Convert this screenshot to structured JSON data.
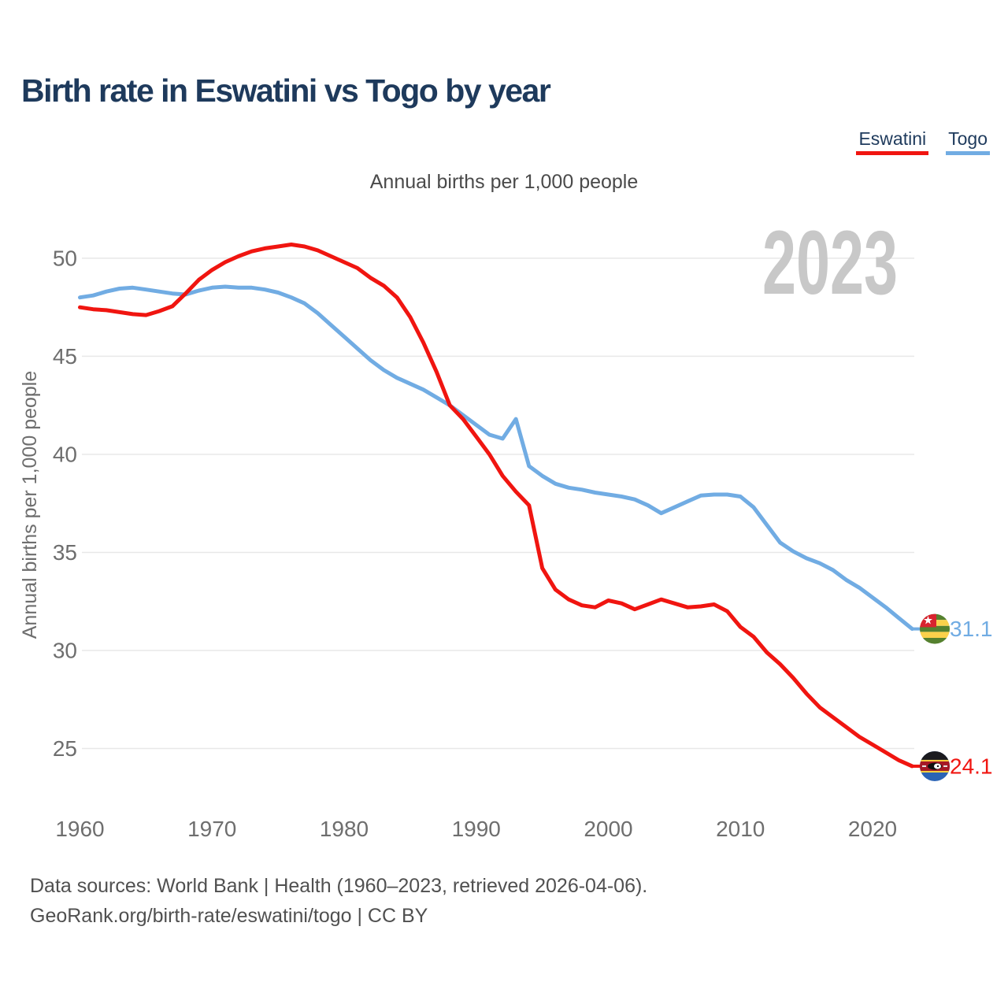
{
  "header": {
    "title": "Birth rate in Eswatini vs Togo by year"
  },
  "subtitle": "Annual births per 1,000 people",
  "y_axis_title": "Annual births per 1,000 people",
  "watermark": "2023",
  "legend": {
    "items": [
      {
        "label": "Eswatini",
        "color": "#f01510"
      },
      {
        "label": "Togo",
        "color": "#71ace3"
      }
    ]
  },
  "end_labels": [
    {
      "series": "Togo",
      "value": "31.1",
      "flag": "togo-flag"
    },
    {
      "series": "Eswatini",
      "value": "24.1",
      "flag": "eswatini-flag"
    }
  ],
  "footer": {
    "line1": "Data sources: World Bank | Health (1960–2023, retrieved 2026-04-06).",
    "line2": "GeoRank.org/birth-rate/eswatini/togo | CC BY"
  },
  "colors": {
    "eswatini": "#f01510",
    "togo": "#71ace3",
    "title_navy": "#1e3a5c",
    "tick_gray": "#6e6e6e",
    "gridline": "#e8e8e8",
    "watermark_gray": "#c8c8c8"
  },
  "chart_data": {
    "type": "line",
    "title": "Birth rate in Eswatini vs Togo by year",
    "ylabel": "Annual births per 1,000 people",
    "xlim": [
      1960,
      2023
    ],
    "ylim": [
      23.5,
      51.5
    ],
    "x_ticks": [
      1960,
      1970,
      1980,
      1990,
      2000,
      2010,
      2020
    ],
    "y_ticks": [
      25,
      30,
      35,
      40,
      45,
      50
    ],
    "grid": "horizontal",
    "legend_position": "top-right",
    "x": [
      1960,
      1961,
      1962,
      1963,
      1964,
      1965,
      1966,
      1967,
      1968,
      1969,
      1970,
      1971,
      1972,
      1973,
      1974,
      1975,
      1976,
      1977,
      1978,
      1979,
      1980,
      1981,
      1982,
      1983,
      1984,
      1985,
      1986,
      1987,
      1988,
      1989,
      1990,
      1991,
      1992,
      1993,
      1994,
      1995,
      1996,
      1997,
      1998,
      1999,
      2000,
      2001,
      2002,
      2003,
      2004,
      2005,
      2006,
      2007,
      2008,
      2009,
      2010,
      2011,
      2012,
      2013,
      2014,
      2015,
      2016,
      2017,
      2018,
      2019,
      2020,
      2021,
      2022,
      2023
    ],
    "series": [
      {
        "name": "Eswatini",
        "color": "#f01510",
        "last_value": 24.1,
        "values": [
          47.5,
          47.4,
          47.35,
          47.25,
          47.15,
          47.1,
          47.3,
          47.55,
          48.2,
          48.9,
          49.4,
          49.8,
          50.1,
          50.35,
          50.5,
          50.6,
          50.7,
          50.6,
          50.4,
          50.1,
          49.8,
          49.5,
          49.0,
          48.6,
          48.0,
          47.0,
          45.7,
          44.2,
          42.5,
          41.8,
          40.9,
          40.0,
          38.9,
          38.1,
          37.4,
          34.2,
          33.1,
          32.6,
          32.3,
          32.2,
          32.55,
          32.4,
          32.1,
          32.35,
          32.6,
          32.4,
          32.2,
          32.25,
          32.35,
          32.0,
          31.2,
          30.7,
          29.9,
          29.3,
          28.6,
          27.8,
          27.1,
          26.6,
          26.1,
          25.6,
          25.2,
          24.8,
          24.4,
          24.1
        ]
      },
      {
        "name": "Togo",
        "color": "#71ace3",
        "last_value": 31.1,
        "values": [
          48.0,
          48.1,
          48.3,
          48.45,
          48.5,
          48.4,
          48.3,
          48.2,
          48.15,
          48.35,
          48.5,
          48.55,
          48.5,
          48.5,
          48.4,
          48.25,
          48.0,
          47.7,
          47.2,
          46.6,
          46.0,
          45.4,
          44.8,
          44.3,
          43.9,
          43.6,
          43.3,
          42.9,
          42.5,
          42.0,
          41.5,
          41.0,
          40.8,
          41.8,
          39.4,
          38.9,
          38.5,
          38.3,
          38.2,
          38.05,
          37.95,
          37.85,
          37.7,
          37.4,
          37.0,
          37.3,
          37.6,
          37.9,
          37.95,
          37.95,
          37.85,
          37.3,
          36.4,
          35.5,
          35.05,
          34.7,
          34.45,
          34.1,
          33.6,
          33.2,
          32.7,
          32.2,
          31.65,
          31.1
        ]
      }
    ]
  }
}
